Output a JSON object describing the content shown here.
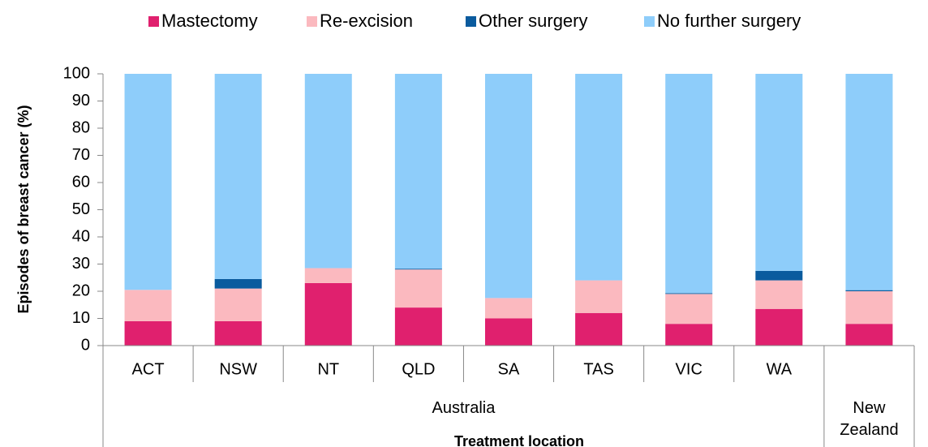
{
  "chart_data": {
    "type": "stacked_bar",
    "y_label": "Episodes of breast cancer (%)",
    "x_label": "Treatment location",
    "categories": [
      "ACT",
      "NSW",
      "NT",
      "QLD",
      "SA",
      "TAS",
      "VIC",
      "WA",
      null
    ],
    "group_labels": [
      "Australia",
      "New Zealand"
    ],
    "series": [
      {
        "name": "Mastectomy",
        "color": "#e0206e",
        "values": [
          9,
          9,
          23,
          14,
          10,
          12,
          8,
          13.5,
          8
        ]
      },
      {
        "name": "Re-excision",
        "color": "#fbb9bf",
        "values": [
          11.5,
          12,
          5.5,
          14,
          7.5,
          12,
          11,
          10.5,
          12
        ]
      },
      {
        "name": "Other surgery",
        "color": "#0a5b9e",
        "values": [
          0,
          3.5,
          0,
          0.3,
          0,
          0,
          0.3,
          3.5,
          0.4
        ]
      },
      {
        "name": "No further surgery",
        "color": "#8ecdfa",
        "values": [
          79.5,
          75.5,
          71.5,
          71.7,
          82.5,
          76,
          80.7,
          72.5,
          79.6
        ]
      }
    ],
    "ylim": [
      0,
      100
    ],
    "yticks": [
      0,
      10,
      20,
      30,
      40,
      50,
      60,
      70,
      80,
      90,
      100
    ],
    "legend": "top"
  }
}
